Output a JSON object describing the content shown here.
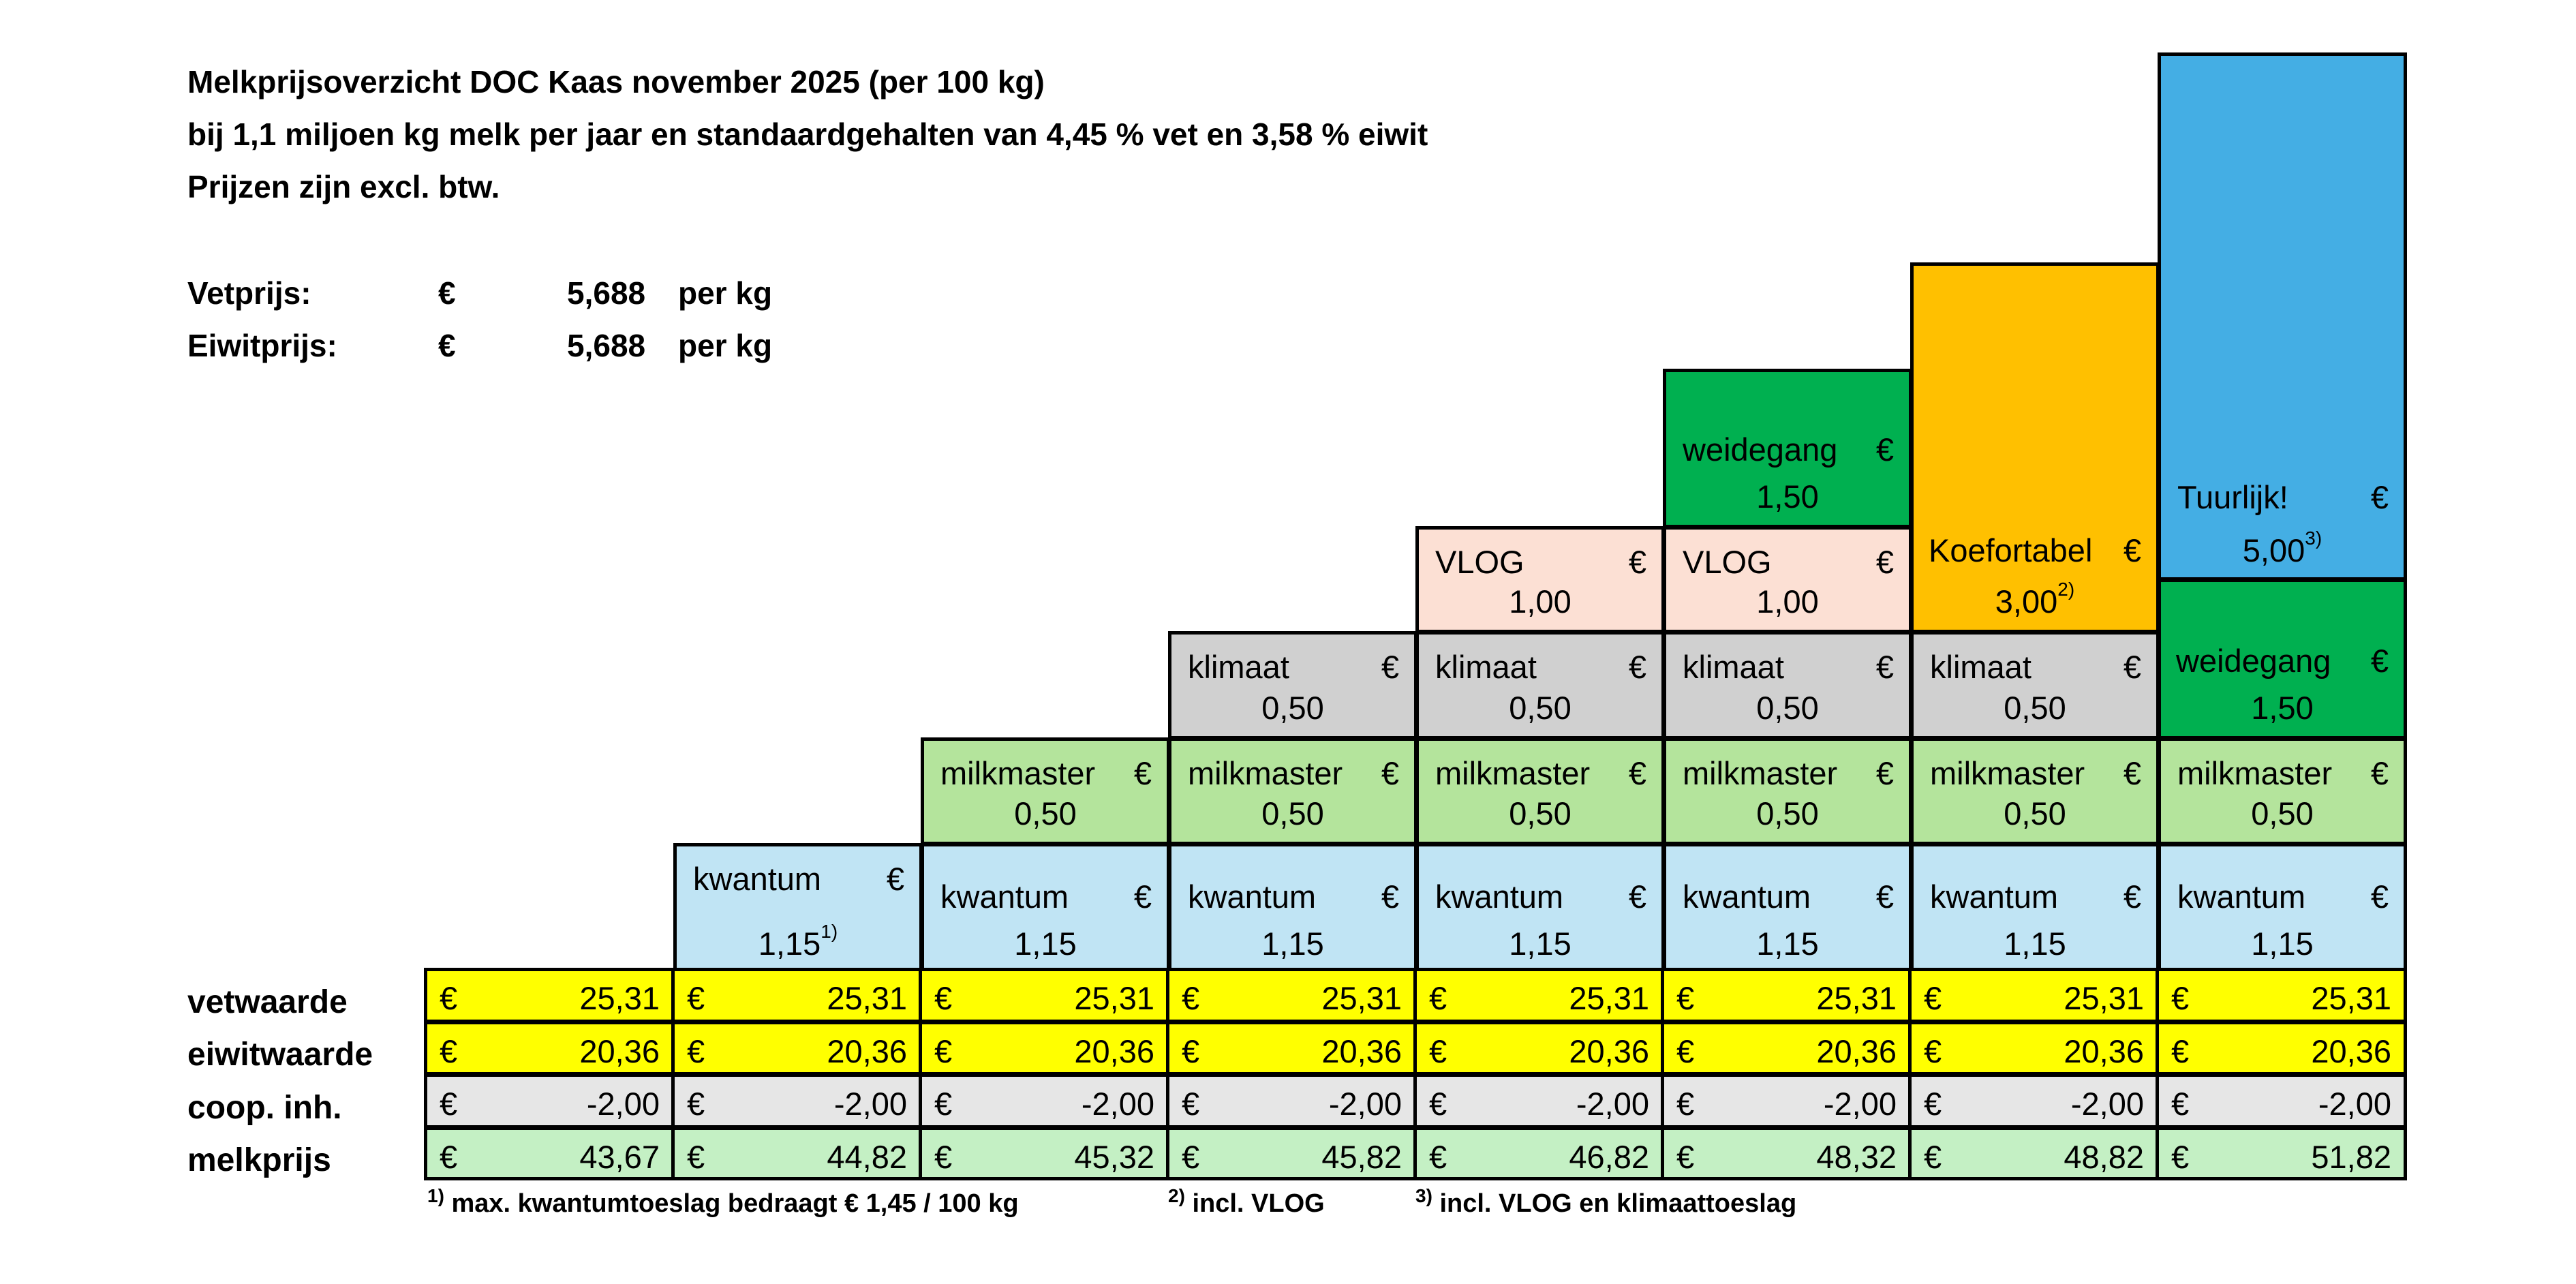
{
  "header": {
    "line1": "Melkprijsoverzicht DOC Kaas november 2025 (per 100 kg)",
    "line2": "bij 1,1 miljoen kg melk per jaar en standaardgehalten van 4,45 % vet en 3,58 % eiwit",
    "line3": "Prijzen zijn excl. btw."
  },
  "prices": {
    "fat": {
      "label": "Vetprijs:",
      "currency": "€",
      "value": "5,688",
      "unit": "per kg"
    },
    "protein": {
      "label": "Eiwitprijs:",
      "currency": "€",
      "value": "5,688",
      "unit": "per kg"
    }
  },
  "currency": "€",
  "components": {
    "kwantum": {
      "label": "kwantum",
      "value": "1,15",
      "note": "1)",
      "color": "#C0E4F4"
    },
    "milkmaster": {
      "label": "milkmaster",
      "value": "0,50",
      "color": "#B4E49C"
    },
    "klimaat": {
      "label": "klimaat",
      "value": "0,50",
      "color": "#D0D0D0"
    },
    "vlog": {
      "label": "VLOG",
      "value": "1,00",
      "color": "#FCE0D4"
    },
    "weidegang": {
      "label": "weidegang",
      "value": "1,50",
      "color": "#00B050"
    },
    "koefortabel": {
      "label": "Koefortabel",
      "value": "3,00",
      "note": "2)",
      "color": "#FFC000"
    },
    "tuurlijk": {
      "label": "Tuurlijk!",
      "value": "5,00",
      "note": "3)",
      "color": "#44AEE4"
    }
  },
  "table": {
    "rows": [
      {
        "label": "vetwaarde",
        "color": "#FFFF00",
        "values": [
          "25,31",
          "25,31",
          "25,31",
          "25,31",
          "25,31",
          "25,31",
          "25,31",
          "25,31"
        ]
      },
      {
        "label": "eiwitwaarde",
        "color": "#FFFF00",
        "values": [
          "20,36",
          "20,36",
          "20,36",
          "20,36",
          "20,36",
          "20,36",
          "20,36",
          "20,36"
        ]
      },
      {
        "label": "coop. inh.",
        "color": "#E6E6E6",
        "values": [
          "-2,00",
          "-2,00",
          "-2,00",
          "-2,00",
          "-2,00",
          "-2,00",
          "-2,00",
          "-2,00"
        ]
      },
      {
        "label": "melkprijs",
        "color": "#C4F0C4",
        "values": [
          "43,67",
          "44,82",
          "45,32",
          "45,82",
          "46,82",
          "48,32",
          "48,82",
          "51,82"
        ]
      }
    ]
  },
  "footnotes": [
    {
      "mark": "1)",
      "text": "max. kwantumtoeslag bedraagt € 1,45 / 100 kg"
    },
    {
      "mark": "2)",
      "text": "incl. VLOG"
    },
    {
      "mark": "3)",
      "text": "incl. VLOG en klimaattoeslag"
    }
  ]
}
